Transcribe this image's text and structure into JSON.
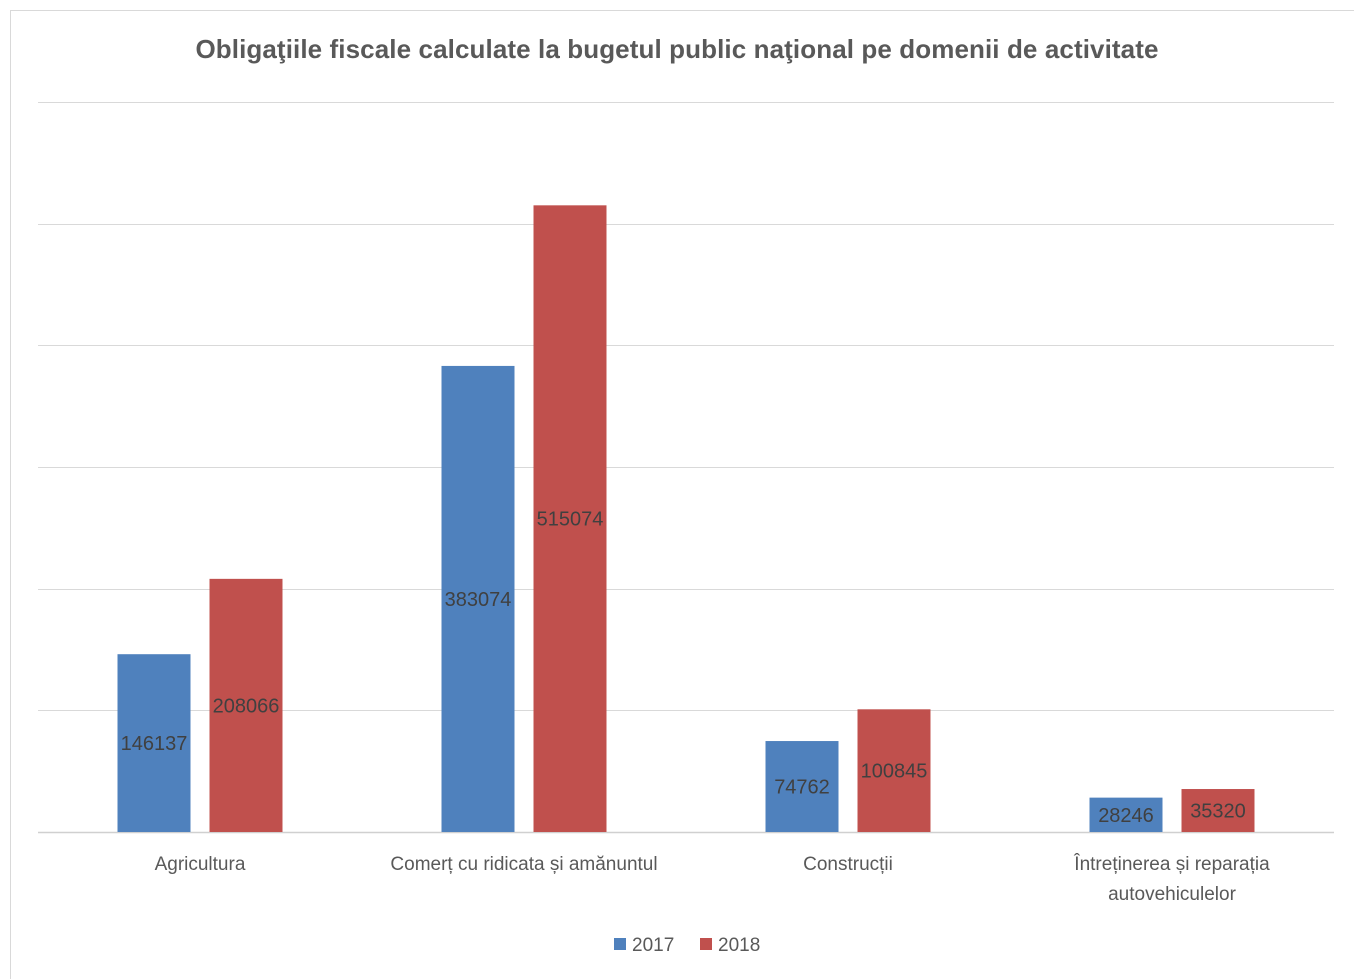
{
  "chart_data": {
    "type": "bar",
    "title": "Obligaţiile fiscale calculate la bugetul public naţional pe domenii de activitate",
    "categories": [
      [
        "Agricultura"
      ],
      [
        "Comerț cu ridicata și amănuntul"
      ],
      [
        "Construcții"
      ],
      [
        "Întreținerea și reparația",
        "autovehiculelor"
      ]
    ],
    "series": [
      {
        "name": "2017",
        "color": "#4f81bd",
        "values": [
          146137,
          383074,
          74762,
          28246
        ]
      },
      {
        "name": "2018",
        "color": "#c0504d",
        "values": [
          208066,
          515074,
          100845,
          35320
        ]
      }
    ],
    "ylim": [
      0,
      600000
    ],
    "gridlines": true,
    "y_tick_labels_shown": false,
    "legend_position": "bottom",
    "xlabel": "",
    "ylabel": ""
  }
}
